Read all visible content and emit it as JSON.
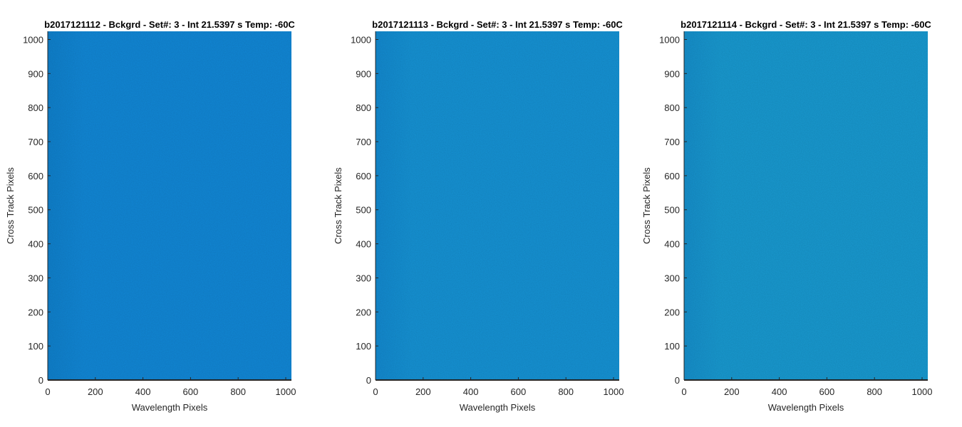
{
  "chart_data": [
    {
      "type": "heatmap",
      "title": "b2017121112 - Bckgrd - Set#: 3 - Int 21.5397 s Temp: -60C",
      "xlabel": "Wavelength Pixels",
      "ylabel": "Cross Track Pixels",
      "xlim": [
        0,
        1024
      ],
      "ylim": [
        0,
        1024
      ],
      "xticks": [
        0,
        200,
        400,
        600,
        800,
        1000
      ],
      "yticks": [
        0,
        100,
        200,
        300,
        400,
        500,
        600,
        700,
        800,
        900,
        1000
      ],
      "fill_color": "#1187d6",
      "edge_color": "#0f80cc"
    },
    {
      "type": "heatmap",
      "title": "b2017121113 - Bckgrd - Set#: 3 - Int 21.5397 s Temp: -60C",
      "xlabel": "Wavelength Pixels",
      "ylabel": "Cross Track Pixels",
      "xlim": [
        0,
        1024
      ],
      "ylim": [
        0,
        1024
      ],
      "xticks": [
        0,
        200,
        400,
        600,
        800,
        1000
      ],
      "yticks": [
        0,
        100,
        200,
        300,
        400,
        500,
        600,
        700,
        800,
        900,
        1000
      ],
      "fill_color": "#1592d4",
      "edge_color": "#1289cf"
    },
    {
      "type": "heatmap",
      "title": "b2017121114 - Bckgrd - Set#: 3 - Int 21.5397 s Temp: -60C",
      "xlabel": "Wavelength Pixels",
      "ylabel": "Cross Track Pixels",
      "xlim": [
        0,
        1024
      ],
      "ylim": [
        0,
        1024
      ],
      "xticks": [
        0,
        200,
        400,
        600,
        800,
        1000
      ],
      "yticks": [
        0,
        100,
        200,
        300,
        400,
        500,
        600,
        700,
        800,
        900,
        1000
      ],
      "fill_color": "#1899d0",
      "edge_color": "#158fcb"
    }
  ]
}
